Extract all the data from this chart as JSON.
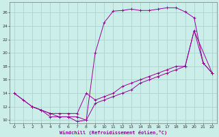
{
  "xlabel": "Windchill (Refroidissement éolien,°C)",
  "background_color": "#cceee8",
  "grid_color": "#aad4ce",
  "line_color": "#990099",
  "xlim": [
    -0.5,
    22.5
  ],
  "ylim": [
    9.5,
    27.5
  ],
  "xticks": [
    0,
    1,
    2,
    3,
    4,
    5,
    6,
    7,
    8,
    9,
    10,
    11,
    12,
    13,
    14,
    15,
    16,
    17,
    18,
    19,
    20,
    21,
    22
  ],
  "yticks": [
    10,
    12,
    14,
    16,
    18,
    20,
    22,
    24,
    26
  ],
  "curve1_x": [
    0,
    1,
    2,
    3,
    4,
    5,
    6,
    7,
    8,
    9,
    10,
    11,
    12,
    13,
    14,
    15,
    16,
    17,
    18,
    19,
    20,
    21,
    22
  ],
  "curve1_y": [
    14,
    13,
    12,
    11.5,
    10.5,
    10.5,
    10.5,
    9.8,
    10,
    20,
    24.5,
    26.2,
    26.3,
    26.5,
    26.3,
    26.3,
    26.5,
    26.7,
    26.7,
    26.1,
    25.2,
    18.5,
    17
  ],
  "curve2_x": [
    0,
    2,
    3,
    4,
    5,
    6,
    7,
    8,
    9,
    10,
    11,
    12,
    13,
    14,
    15,
    16,
    17,
    18,
    19,
    20,
    21,
    22
  ],
  "curve2_y": [
    14,
    12,
    11.5,
    11,
    11,
    11,
    11,
    14,
    13,
    13.5,
    14,
    15,
    15.5,
    16,
    16.5,
    17,
    17.5,
    18,
    18,
    23.3,
    18.5,
    17
  ],
  "curve3_x": [
    2,
    3,
    4,
    5,
    6,
    7,
    8,
    9,
    10,
    11,
    12,
    13,
    14,
    15,
    16,
    17,
    18,
    19,
    20,
    22
  ],
  "curve3_y": [
    12,
    11.5,
    11,
    10.5,
    10.5,
    10.5,
    10,
    12.5,
    13,
    13.5,
    14,
    14.5,
    15.5,
    16,
    16.5,
    17,
    17.5,
    18,
    23.3,
    17
  ]
}
